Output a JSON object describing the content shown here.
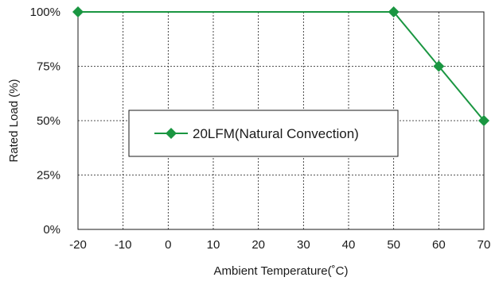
{
  "chart_data": {
    "type": "line",
    "xlabel": "Ambient Temperature(˚C)",
    "ylabel": "Rated Load (%)",
    "x_ticks": [
      "-20",
      "-10",
      "0",
      "10",
      "20",
      "30",
      "40",
      "50",
      "60",
      "70"
    ],
    "y_ticks": [
      "0%",
      "25%",
      "50%",
      "75%",
      "100%"
    ],
    "xlim": [
      -20,
      70
    ],
    "ylim": [
      0,
      100
    ],
    "grid": true,
    "legend_position": "center-left",
    "series": [
      {
        "name": "20LFM(Natural Convection)",
        "color": "#1a9641",
        "marker": "diamond",
        "points": [
          {
            "x": -20,
            "y": 100
          },
          {
            "x": 50,
            "y": 100
          },
          {
            "x": 60,
            "y": 75
          },
          {
            "x": 70,
            "y": 50
          }
        ]
      }
    ]
  }
}
